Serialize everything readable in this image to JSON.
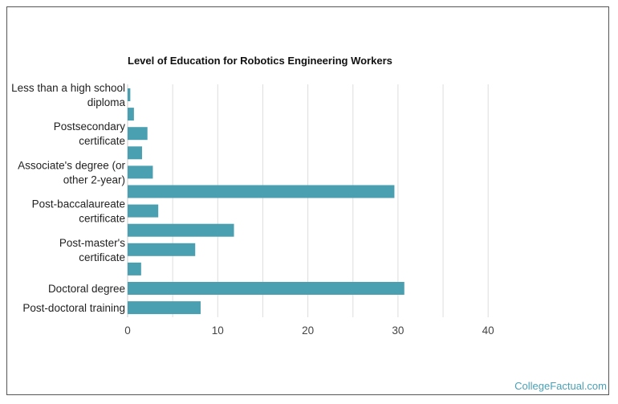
{
  "chart_data": {
    "type": "bar",
    "orientation": "horizontal",
    "title": "Level of Education for Robotics Engineering Workers",
    "xlabel": "",
    "ylabel": "",
    "xlim": [
      0,
      40
    ],
    "x_ticks": [
      "0",
      "10",
      "20",
      "30",
      "40"
    ],
    "grid": true,
    "bar_color": "#4a9fb0",
    "rows": [
      {
        "label": [
          "Less than a high school",
          "diploma"
        ],
        "value": 0.3
      },
      {
        "label": [],
        "value": 0.7
      },
      {
        "label": [
          "Postsecondary",
          "certificate"
        ],
        "value": 2.2
      },
      {
        "label": [],
        "value": 1.6
      },
      {
        "label": [
          "Associate's degree (or",
          "other 2-year)"
        ],
        "value": 2.8
      },
      {
        "label": [],
        "value": 29.6
      },
      {
        "label": [
          "Post-baccalaureate",
          "certificate"
        ],
        "value": 3.4
      },
      {
        "label": [],
        "value": 11.8
      },
      {
        "label": [
          "Post-master's",
          "certificate"
        ],
        "value": 7.5
      },
      {
        "label": [],
        "value": 1.5
      },
      {
        "label": [
          "Doctoral degree"
        ],
        "value": 30.7
      },
      {
        "label": [
          "Post-doctoral training"
        ],
        "value": 8.1
      }
    ]
  },
  "credit": "CollegeFactual.com"
}
